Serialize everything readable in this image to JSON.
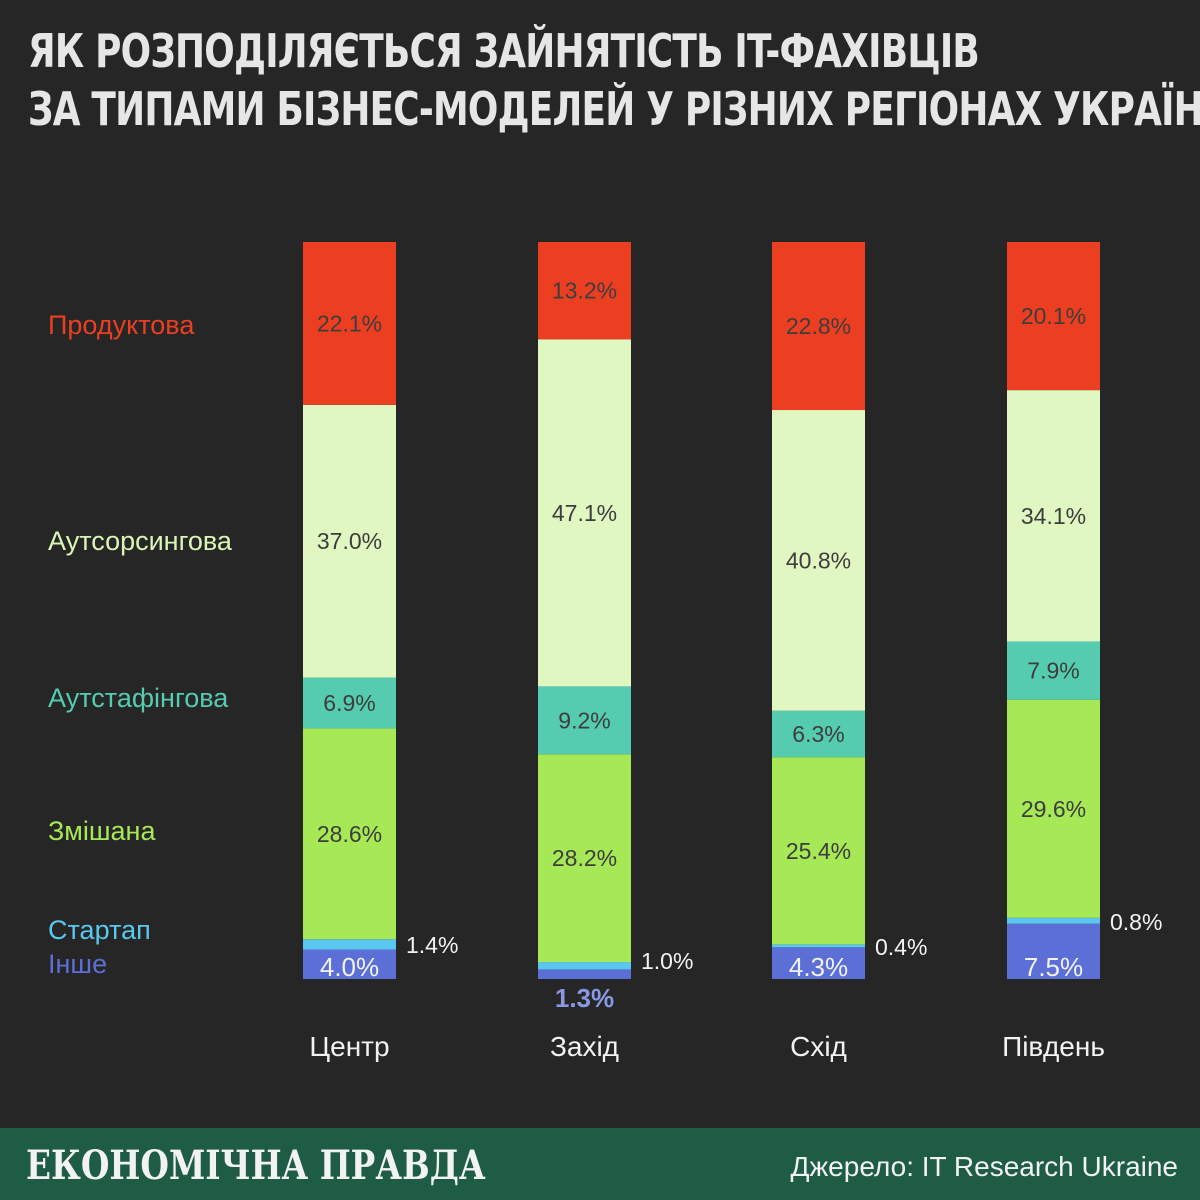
{
  "title_lines": [
    "ЯК РОЗПОДІЛЯЄТЬСЯ ЗАЙНЯТІСТЬ IT-ФАХІВЦІВ",
    "ЗА ТИПАМИ БІЗНЕС-МОДЕЛЕЙ У РІЗНИХ РЕГІОНАХ УКРАЇНИ?"
  ],
  "footer": {
    "brand": "ЕКОНОМІЧНА ПРАВДА",
    "source": "Джерело: IT Research Ukraine"
  },
  "chart_data": {
    "type": "bar",
    "stacked": true,
    "stack_order": "bottom-to-top",
    "categories": [
      "Центр",
      "Захід",
      "Схід",
      "Південь"
    ],
    "series": [
      {
        "name": "Інше",
        "color": "#5b6fd6",
        "values": [
          4.0,
          1.3,
          4.3,
          7.5
        ],
        "labels": [
          "4.0%",
          "1.3%",
          "4.3%",
          "7.5%"
        ]
      },
      {
        "name": "Стартап",
        "color": "#5ac8ee",
        "values": [
          1.4,
          1.0,
          0.4,
          0.8
        ],
        "labels": [
          "1.4%",
          "1.0%",
          "0.4%",
          "0.8%"
        ]
      },
      {
        "name": "Змішана",
        "color": "#a6e855",
        "values": [
          28.6,
          28.2,
          25.4,
          29.6
        ],
        "labels": [
          "28.6%",
          "28.2%",
          "25.4%",
          "29.6%"
        ]
      },
      {
        "name": "Аутстафінгова",
        "color": "#55cbb0",
        "values": [
          6.9,
          9.2,
          6.3,
          7.9
        ],
        "labels": [
          "6.9%",
          "9.2%",
          "6.3%",
          "7.9%"
        ]
      },
      {
        "name": "Аутсорсингова",
        "color": "#e1f7c2",
        "values": [
          37.0,
          47.1,
          40.8,
          34.1
        ],
        "labels": [
          "37.0%",
          "47.1%",
          "40.8%",
          "34.1%"
        ]
      },
      {
        "name": "Продуктова",
        "color": "#ec3f22",
        "values": [
          22.1,
          13.2,
          22.8,
          20.1
        ],
        "labels": [
          "22.1%",
          "13.2%",
          "22.8%",
          "20.1%"
        ]
      }
    ],
    "legend_placement": "left",
    "ylim": [
      0,
      100
    ],
    "grid": false
  }
}
